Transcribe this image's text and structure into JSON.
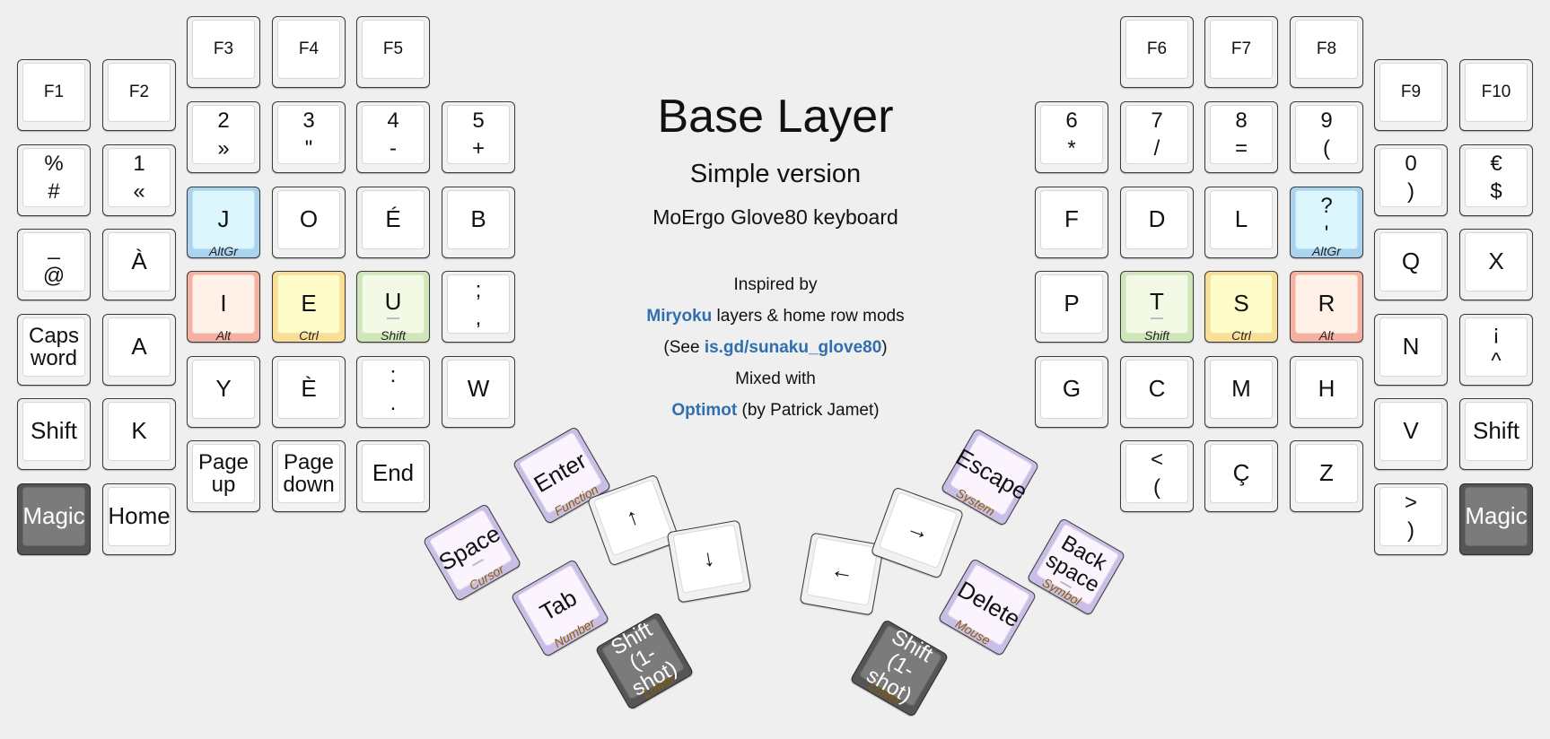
{
  "center": {
    "title": "Base Layer",
    "subtitle": "Simple version",
    "keyboard": "MoErgo Glove80 keyboard",
    "inspired": "Inspired by",
    "miryoku": "Miryoku",
    "miryoku_rest": " layers & home row mods",
    "see_open": "(See ",
    "see_link": "is.gd/sunaku_glove80",
    "see_close": ")",
    "mixed": "Mixed with",
    "optimot": "Optimot",
    "optimot_rest": " (by Patrick Jamet)"
  },
  "keys": [
    {
      "id": "f1",
      "label": "F1",
      "style": "small"
    },
    {
      "id": "f2",
      "label": "F2",
      "style": "small"
    },
    {
      "id": "f3",
      "label": "F3",
      "style": "small"
    },
    {
      "id": "f4",
      "label": "F4",
      "style": "small"
    },
    {
      "id": "f5",
      "label": "F5",
      "style": "small"
    },
    {
      "id": "f6",
      "label": "F6",
      "style": "small"
    },
    {
      "id": "f7",
      "label": "F7",
      "style": "small"
    },
    {
      "id": "f8",
      "label": "F8",
      "style": "small"
    },
    {
      "id": "f9",
      "label": "F9",
      "style": "small"
    },
    {
      "id": "f10",
      "label": "F10",
      "style": "small"
    },
    {
      "id": "percent",
      "top": "%",
      "bottom": "#"
    },
    {
      "id": "one",
      "top": "1",
      "bottom": "«"
    },
    {
      "id": "two",
      "top": "2",
      "bottom": "»"
    },
    {
      "id": "three",
      "top": "3",
      "bottom": "\""
    },
    {
      "id": "four",
      "top": "4",
      "bottom": "-"
    },
    {
      "id": "five",
      "top": "5",
      "bottom": "+"
    },
    {
      "id": "six",
      "top": "6",
      "bottom": "*"
    },
    {
      "id": "seven",
      "top": "7",
      "bottom": "/"
    },
    {
      "id": "eight",
      "top": "8",
      "bottom": "="
    },
    {
      "id": "nine",
      "top": "9",
      "bottom": "("
    },
    {
      "id": "zero",
      "top": "0",
      "bottom": ")"
    },
    {
      "id": "euro",
      "top": "€",
      "bottom": "$"
    },
    {
      "id": "underscore",
      "top": "_",
      "bottom": "@"
    },
    {
      "id": "agrave",
      "label": "À"
    },
    {
      "id": "j",
      "label": "J",
      "hold": "AltGr",
      "color": "blue"
    },
    {
      "id": "o",
      "label": "O"
    },
    {
      "id": "eacute",
      "label": "É"
    },
    {
      "id": "b",
      "label": "B"
    },
    {
      "id": "f",
      "label": "F"
    },
    {
      "id": "d",
      "label": "D"
    },
    {
      "id": "l",
      "label": "L"
    },
    {
      "id": "question",
      "top": "?",
      "bottom": "'",
      "hold": "AltGr",
      "color": "blue"
    },
    {
      "id": "q",
      "label": "Q"
    },
    {
      "id": "x",
      "label": "X"
    },
    {
      "id": "capsword",
      "top": "Caps",
      "bottom": "word"
    },
    {
      "id": "a",
      "label": "A"
    },
    {
      "id": "i",
      "label": "I",
      "hold": "Alt",
      "color": "red"
    },
    {
      "id": "e",
      "label": "E",
      "hold": "Ctrl",
      "color": "yellow"
    },
    {
      "id": "u",
      "label": "U",
      "hold": "Shift",
      "color": "green"
    },
    {
      "id": "semicolon",
      "top": ";",
      "bottom": ","
    },
    {
      "id": "p",
      "label": "P"
    },
    {
      "id": "t",
      "label": "T",
      "hold": "Shift",
      "color": "green"
    },
    {
      "id": "s",
      "label": "S",
      "hold": "Ctrl",
      "color": "yellow"
    },
    {
      "id": "r",
      "label": "R",
      "hold": "Alt",
      "color": "red"
    },
    {
      "id": "n",
      "label": "N"
    },
    {
      "id": "iexcl",
      "top": "¡",
      "bottom": "^"
    },
    {
      "id": "shift-left",
      "label": "Shift"
    },
    {
      "id": "k",
      "label": "K"
    },
    {
      "id": "y",
      "label": "Y"
    },
    {
      "id": "egrave",
      "label": "È"
    },
    {
      "id": "colon",
      "top": ":",
      "bottom": "."
    },
    {
      "id": "w",
      "label": "W"
    },
    {
      "id": "g",
      "label": "G"
    },
    {
      "id": "c",
      "label": "C"
    },
    {
      "id": "m",
      "label": "M"
    },
    {
      "id": "h",
      "label": "H"
    },
    {
      "id": "v",
      "label": "V"
    },
    {
      "id": "shift-right",
      "label": "Shift"
    },
    {
      "id": "magic-left",
      "label": "Magic",
      "color": "dark"
    },
    {
      "id": "home",
      "label": "Home"
    },
    {
      "id": "pageup",
      "top": "Page",
      "bottom": "up"
    },
    {
      "id": "pagedown",
      "top": "Page",
      "bottom": "down"
    },
    {
      "id": "end",
      "label": "End"
    },
    {
      "id": "less",
      "top": "<",
      "bottom": "("
    },
    {
      "id": "ccedil",
      "label": "Ç"
    },
    {
      "id": "z",
      "label": "Z"
    },
    {
      "id": "greater",
      "top": ">",
      "bottom": ")"
    },
    {
      "id": "magic-right",
      "label": "Magic",
      "color": "dark"
    },
    {
      "id": "enter",
      "label": "Enter",
      "hold": "Function",
      "color": "purple"
    },
    {
      "id": "up",
      "label": "↑"
    },
    {
      "id": "down",
      "label": "↓"
    },
    {
      "id": "space",
      "label": "Space",
      "hold": "Cursor",
      "color": "purple"
    },
    {
      "id": "tab",
      "label": "Tab",
      "hold": "Number",
      "color": "purple"
    },
    {
      "id": "shift-oneshot-left",
      "top": "Shift",
      "bottom": "(1-shot)",
      "hold": "Lower",
      "color": "dark"
    },
    {
      "id": "left",
      "label": "←"
    },
    {
      "id": "right",
      "label": "→"
    },
    {
      "id": "escape",
      "label": "Escape",
      "hold": "System",
      "color": "purple"
    },
    {
      "id": "delete",
      "label": "Delete",
      "hold": "Mouse",
      "color": "purple"
    },
    {
      "id": "backspace",
      "top": "Back",
      "bottom": "space",
      "hold": "Symbol",
      "color": "purple"
    },
    {
      "id": "shift-oneshot-right",
      "top": "Shift",
      "bottom": "(1-shot)",
      "hold": "Lower",
      "color": "dark"
    }
  ]
}
